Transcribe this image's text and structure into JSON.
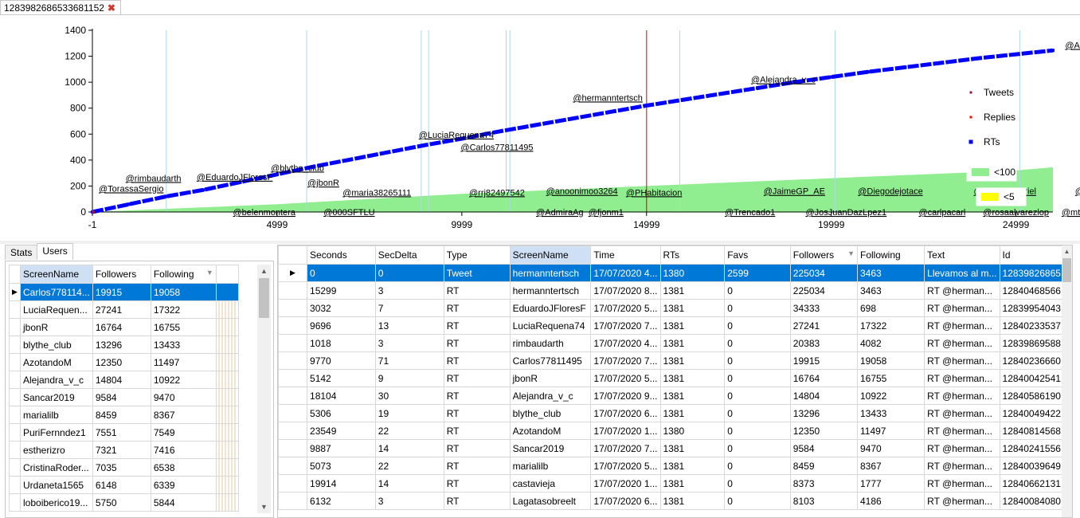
{
  "window": {
    "tab_title": "1283982686533681152"
  },
  "chart_data": {
    "type": "line",
    "x_ticks": [
      "-1",
      "4999",
      "9999",
      "14999",
      "19999",
      "24999"
    ],
    "y_ticks": [
      "1400",
      "1200",
      "1000",
      "800",
      "600",
      "400",
      "200",
      "0"
    ],
    "xlim": [
      -1,
      25999
    ],
    "ylim": [
      0,
      1400
    ],
    "legend": {
      "position": "right",
      "items": [
        {
          "name": "Tweets",
          "color": "#8b1a4a"
        },
        {
          "name": "Replies",
          "color": "#ff0000"
        },
        {
          "name": "RTs",
          "color": "#0000ff"
        },
        {
          "name": "<100",
          "color": "#90ee90"
        },
        {
          "name": "<5",
          "color": "#ffff00"
        }
      ]
    },
    "series": [
      {
        "name": "RTs",
        "x": [
          0,
          1000,
          2000,
          3000,
          4000,
          5000,
          6000,
          7000,
          8000,
          9000,
          10000,
          11000,
          12000,
          13000,
          14000,
          15000,
          16000,
          17000,
          18000,
          19000,
          20000,
          21000,
          22000,
          23000,
          24000,
          25000,
          26000
        ],
        "values": [
          0,
          60,
          120,
          170,
          230,
          290,
          350,
          405,
          460,
          515,
          565,
          620,
          670,
          720,
          770,
          820,
          865,
          910,
          955,
          1000,
          1040,
          1080,
          1115,
          1150,
          1185,
          1215,
          1245
        ]
      },
      {
        "name": "<100",
        "x": [
          0,
          5000,
          10000,
          15000,
          20000,
          25000,
          26000
        ],
        "values": [
          0,
          60,
          140,
          200,
          260,
          320,
          345
        ]
      }
    ],
    "vlines": [
      2000,
      5800,
      8900,
      9100,
      11200,
      11300,
      15900,
      20100,
      25100,
      27600
    ],
    "red_line": 15000,
    "annotations_above": [
      {
        "text": "@rimbaudarth",
        "x": 1650,
        "y": 200
      },
      {
        "text": "@TorassaSergio",
        "x": 1050,
        "y": 120
      },
      {
        "text": "@EduardoJFloresF",
        "x": 3850,
        "y": 210
      },
      {
        "text": "@blythe_club",
        "x": 5550,
        "y": 280
      },
      {
        "text": "@jbonR",
        "x": 6250,
        "y": 165
      },
      {
        "text": "@maria38265111",
        "x": 7700,
        "y": 90
      },
      {
        "text": "@LuciaRequena74",
        "x": 9850,
        "y": 535
      },
      {
        "text": "@Carlos77811495",
        "x": 10950,
        "y": 440
      },
      {
        "text": "@hermanntertsch",
        "x": 13950,
        "y": 820
      },
      {
        "text": "@Alejandra_v_c",
        "x": 18700,
        "y": 960
      },
      {
        "text": "@AzotandoM",
        "x": 27050,
        "y": 1225
      },
      {
        "text": "@rrj82497542",
        "x": 10950,
        "y": 90
      },
      {
        "text": "@anoonimoo3264",
        "x": 13250,
        "y": 100
      },
      {
        "text": "@PHabitacion",
        "x": 15200,
        "y": 90
      },
      {
        "text": "@JaimeGP_AE",
        "x": 19000,
        "y": 100
      },
      {
        "text": "@Diegodejotace",
        "x": 21600,
        "y": 100
      },
      {
        "text": "@elsitio_gabriel",
        "x": 24700,
        "y": 100
      },
      {
        "text": "@angelguti",
        "x": 27200,
        "y": 100
      }
    ],
    "annotations_below": [
      {
        "text": "@belenmontera",
        "x": 4650,
        "y": 0
      },
      {
        "text": "@000SFTLU",
        "x": 6950,
        "y": 0
      },
      {
        "text": "@AdmiraAg",
        "x": 12650,
        "y": 0
      },
      {
        "text": "@fjonm1",
        "x": 13900,
        "y": 0
      },
      {
        "text": "@Trencado1",
        "x": 17800,
        "y": 0
      },
      {
        "text": "@JosJuanDazLpez1",
        "x": 20400,
        "y": 0
      },
      {
        "text": "@carlpacarl",
        "x": 23000,
        "y": 0
      },
      {
        "text": "@rosaalvarezlop",
        "x": 25000,
        "y": 0
      },
      {
        "text": "@mtsaldorami",
        "x": 27000,
        "y": 0
      }
    ]
  },
  "left_panel": {
    "tabs": [
      "Stats",
      "Users"
    ],
    "columns": [
      "ScreenName",
      "Followers",
      "Following"
    ],
    "rows": [
      [
        "Carlos778114...",
        "19915",
        "19058"
      ],
      [
        "LuciaRequen...",
        "27241",
        "17322"
      ],
      [
        "jbonR",
        "16764",
        "16755"
      ],
      [
        "blythe_club",
        "13296",
        "13433"
      ],
      [
        "AzotandoM",
        "12350",
        "11497"
      ],
      [
        "Alejandra_v_c",
        "14804",
        "10922"
      ],
      [
        "Sancar2019",
        "9584",
        "9470"
      ],
      [
        "marialilb",
        "8459",
        "8367"
      ],
      [
        "PuriFernndez1",
        "7551",
        "7549"
      ],
      [
        "estherizro",
        "7321",
        "7416"
      ],
      [
        "CristinaRoder...",
        "7035",
        "6538"
      ],
      [
        "Urdaneta1565",
        "6148",
        "6339"
      ],
      [
        "loboiberico19...",
        "5750",
        "5844"
      ]
    ]
  },
  "main_grid": {
    "columns": [
      "Seconds",
      "SecDelta",
      "Type",
      "ScreenName",
      "Time",
      "RTs",
      "Favs",
      "Followers",
      "Following",
      "Text",
      "Id"
    ],
    "rows": [
      [
        "0",
        "0",
        "Tweet",
        "hermanntertsch",
        "17/07/2020 4...",
        "1380",
        "2599",
        "225034",
        "3463",
        "Llevamos al m...",
        "12839826865..."
      ],
      [
        "15299",
        "3",
        "RT",
        "hermanntertsch",
        "17/07/2020 8...",
        "1381",
        "0",
        "225034",
        "3463",
        "RT @herman...",
        "12840468566..."
      ],
      [
        "3032",
        "7",
        "RT",
        "EduardoJFloresF",
        "17/07/2020 5...",
        "1381",
        "0",
        "34333",
        "698",
        "RT @herman...",
        "12839954043..."
      ],
      [
        "9696",
        "13",
        "RT",
        "LuciaRequena74",
        "17/07/2020 7...",
        "1381",
        "0",
        "27241",
        "17322",
        "RT @herman...",
        "12840233537..."
      ],
      [
        "1018",
        "3",
        "RT",
        "rimbaudarth",
        "17/07/2020 4...",
        "1381",
        "0",
        "20383",
        "4082",
        "RT @herman...",
        "12839869588..."
      ],
      [
        "9770",
        "71",
        "RT",
        "Carlos77811495",
        "17/07/2020 7...",
        "1381",
        "0",
        "19915",
        "19058",
        "RT @herman...",
        "12840236660..."
      ],
      [
        "5142",
        "9",
        "RT",
        "jbonR",
        "17/07/2020 5...",
        "1381",
        "0",
        "16764",
        "16755",
        "RT @herman...",
        "12840042541..."
      ],
      [
        "18104",
        "30",
        "RT",
        "Alejandra_v_c",
        "17/07/2020 9...",
        "1381",
        "0",
        "14804",
        "10922",
        "RT @herman...",
        "12840586190..."
      ],
      [
        "5306",
        "19",
        "RT",
        "blythe_club",
        "17/07/2020 6...",
        "1381",
        "0",
        "13296",
        "13433",
        "RT @herman...",
        "12840049422..."
      ],
      [
        "23549",
        "22",
        "RT",
        "AzotandoM",
        "17/07/2020 1...",
        "1380",
        "0",
        "12350",
        "11497",
        "RT @herman...",
        "12840814568..."
      ],
      [
        "9887",
        "14",
        "RT",
        "Sancar2019",
        "17/07/2020 7...",
        "1381",
        "0",
        "9584",
        "9470",
        "RT @herman...",
        "12840241556..."
      ],
      [
        "5073",
        "22",
        "RT",
        "marialilb",
        "17/07/2020 5...",
        "1381",
        "0",
        "8459",
        "8367",
        "RT @herman...",
        "12840039649..."
      ],
      [
        "19914",
        "14",
        "RT",
        "castavieja",
        "17/07/2020 1...",
        "1381",
        "0",
        "8373",
        "1777",
        "RT @herman...",
        "12840662131..."
      ],
      [
        "6132",
        "3",
        "RT",
        "Lagatasobreelt",
        "17/07/2020 6...",
        "1381",
        "0",
        "8103",
        "4186",
        "RT @herman...",
        "12840084080..."
      ]
    ]
  }
}
